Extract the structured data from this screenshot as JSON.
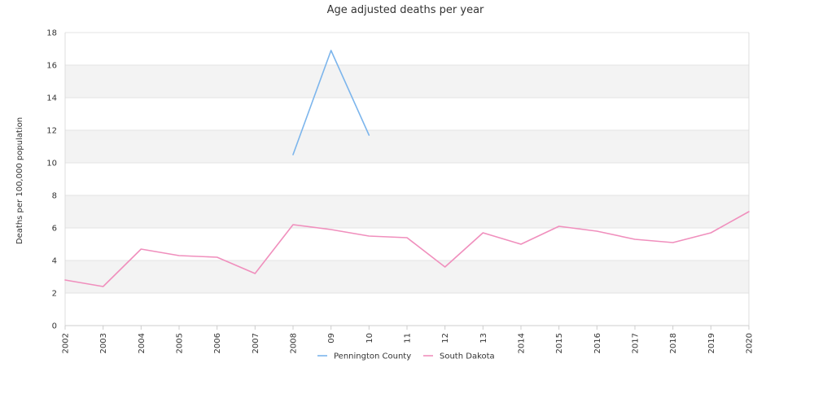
{
  "chart_data": {
    "type": "line",
    "title": "Age adjusted deaths per year",
    "xlabel": "",
    "ylabel": "Deaths per 100,000 population",
    "ylim": [
      0,
      18
    ],
    "yticks": [
      "0",
      "2",
      "4",
      "6",
      "8",
      "10",
      "12",
      "14",
      "16",
      "18"
    ],
    "categories": [
      "2002",
      "2003",
      "2004",
      "2005",
      "2006",
      "2007",
      "2008",
      "09",
      "10",
      "11",
      "12",
      "13",
      "2014",
      "2015",
      "2016",
      "2017",
      "2018",
      "2019",
      "2020"
    ],
    "grid": "alternating horizontal bands",
    "legend_position": "bottom",
    "series": [
      {
        "name": "Pennington County",
        "color": "#7cb5ec",
        "values": [
          null,
          null,
          null,
          null,
          null,
          null,
          10.5,
          16.9,
          11.7,
          null,
          null,
          null,
          null,
          null,
          null,
          null,
          null,
          null,
          null
        ]
      },
      {
        "name": "South Dakota",
        "color": "#f08fbd",
        "values": [
          2.8,
          2.4,
          4.7,
          4.3,
          4.2,
          3.2,
          6.2,
          5.9,
          5.5,
          5.4,
          3.6,
          5.7,
          5.0,
          6.1,
          5.8,
          5.3,
          5.1,
          5.7,
          7.0
        ]
      }
    ]
  }
}
